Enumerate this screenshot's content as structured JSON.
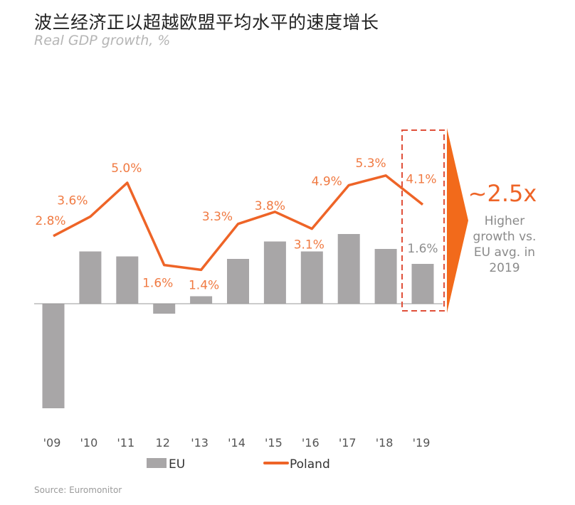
{
  "title": "波兰经济正以超越欧盟平均水平的速度增长",
  "subtitle": "Real GDP growth, %",
  "source": "Source: Euromonitor",
  "colors": {
    "eu": "#a8a6a7",
    "poland": "#ee6427",
    "poland_label": "#f07a42",
    "eu_label": "#8e8e8e"
  },
  "chart_data": {
    "type": "bar+line",
    "categories": [
      "'09",
      "'10",
      "'11",
      "12",
      "'13",
      "'14",
      "'15",
      "'16",
      "'17",
      "'18",
      "'19"
    ],
    "series": [
      {
        "name": "EU",
        "type": "bar",
        "values": [
          -4.2,
          2.1,
          1.9,
          -0.4,
          0.3,
          1.8,
          2.5,
          2.1,
          2.8,
          2.2,
          1.6
        ]
      },
      {
        "name": "Poland",
        "type": "line",
        "values": [
          2.8,
          3.6,
          5.0,
          1.6,
          1.4,
          3.3,
          3.8,
          3.1,
          4.9,
          5.3,
          4.1
        ]
      }
    ],
    "data_labels": {
      "poland": [
        "2.8%",
        "3.6%",
        "5.0%",
        "1.6%",
        "1.4%",
        "3.3%",
        "3.8%",
        "3.1%",
        "4.9%",
        "5.3%",
        "4.1%"
      ],
      "eu_2019": "1.6%"
    },
    "highlight": {
      "category": "'19",
      "style": "dashed box"
    },
    "annotation": {
      "value": "~2.5x",
      "text": [
        "Higher",
        "growth vs.",
        "EU avg. in",
        "2019"
      ]
    },
    "legend": {
      "placement": "bottom",
      "entries": [
        "EU",
        "Poland"
      ]
    },
    "grid": false
  }
}
